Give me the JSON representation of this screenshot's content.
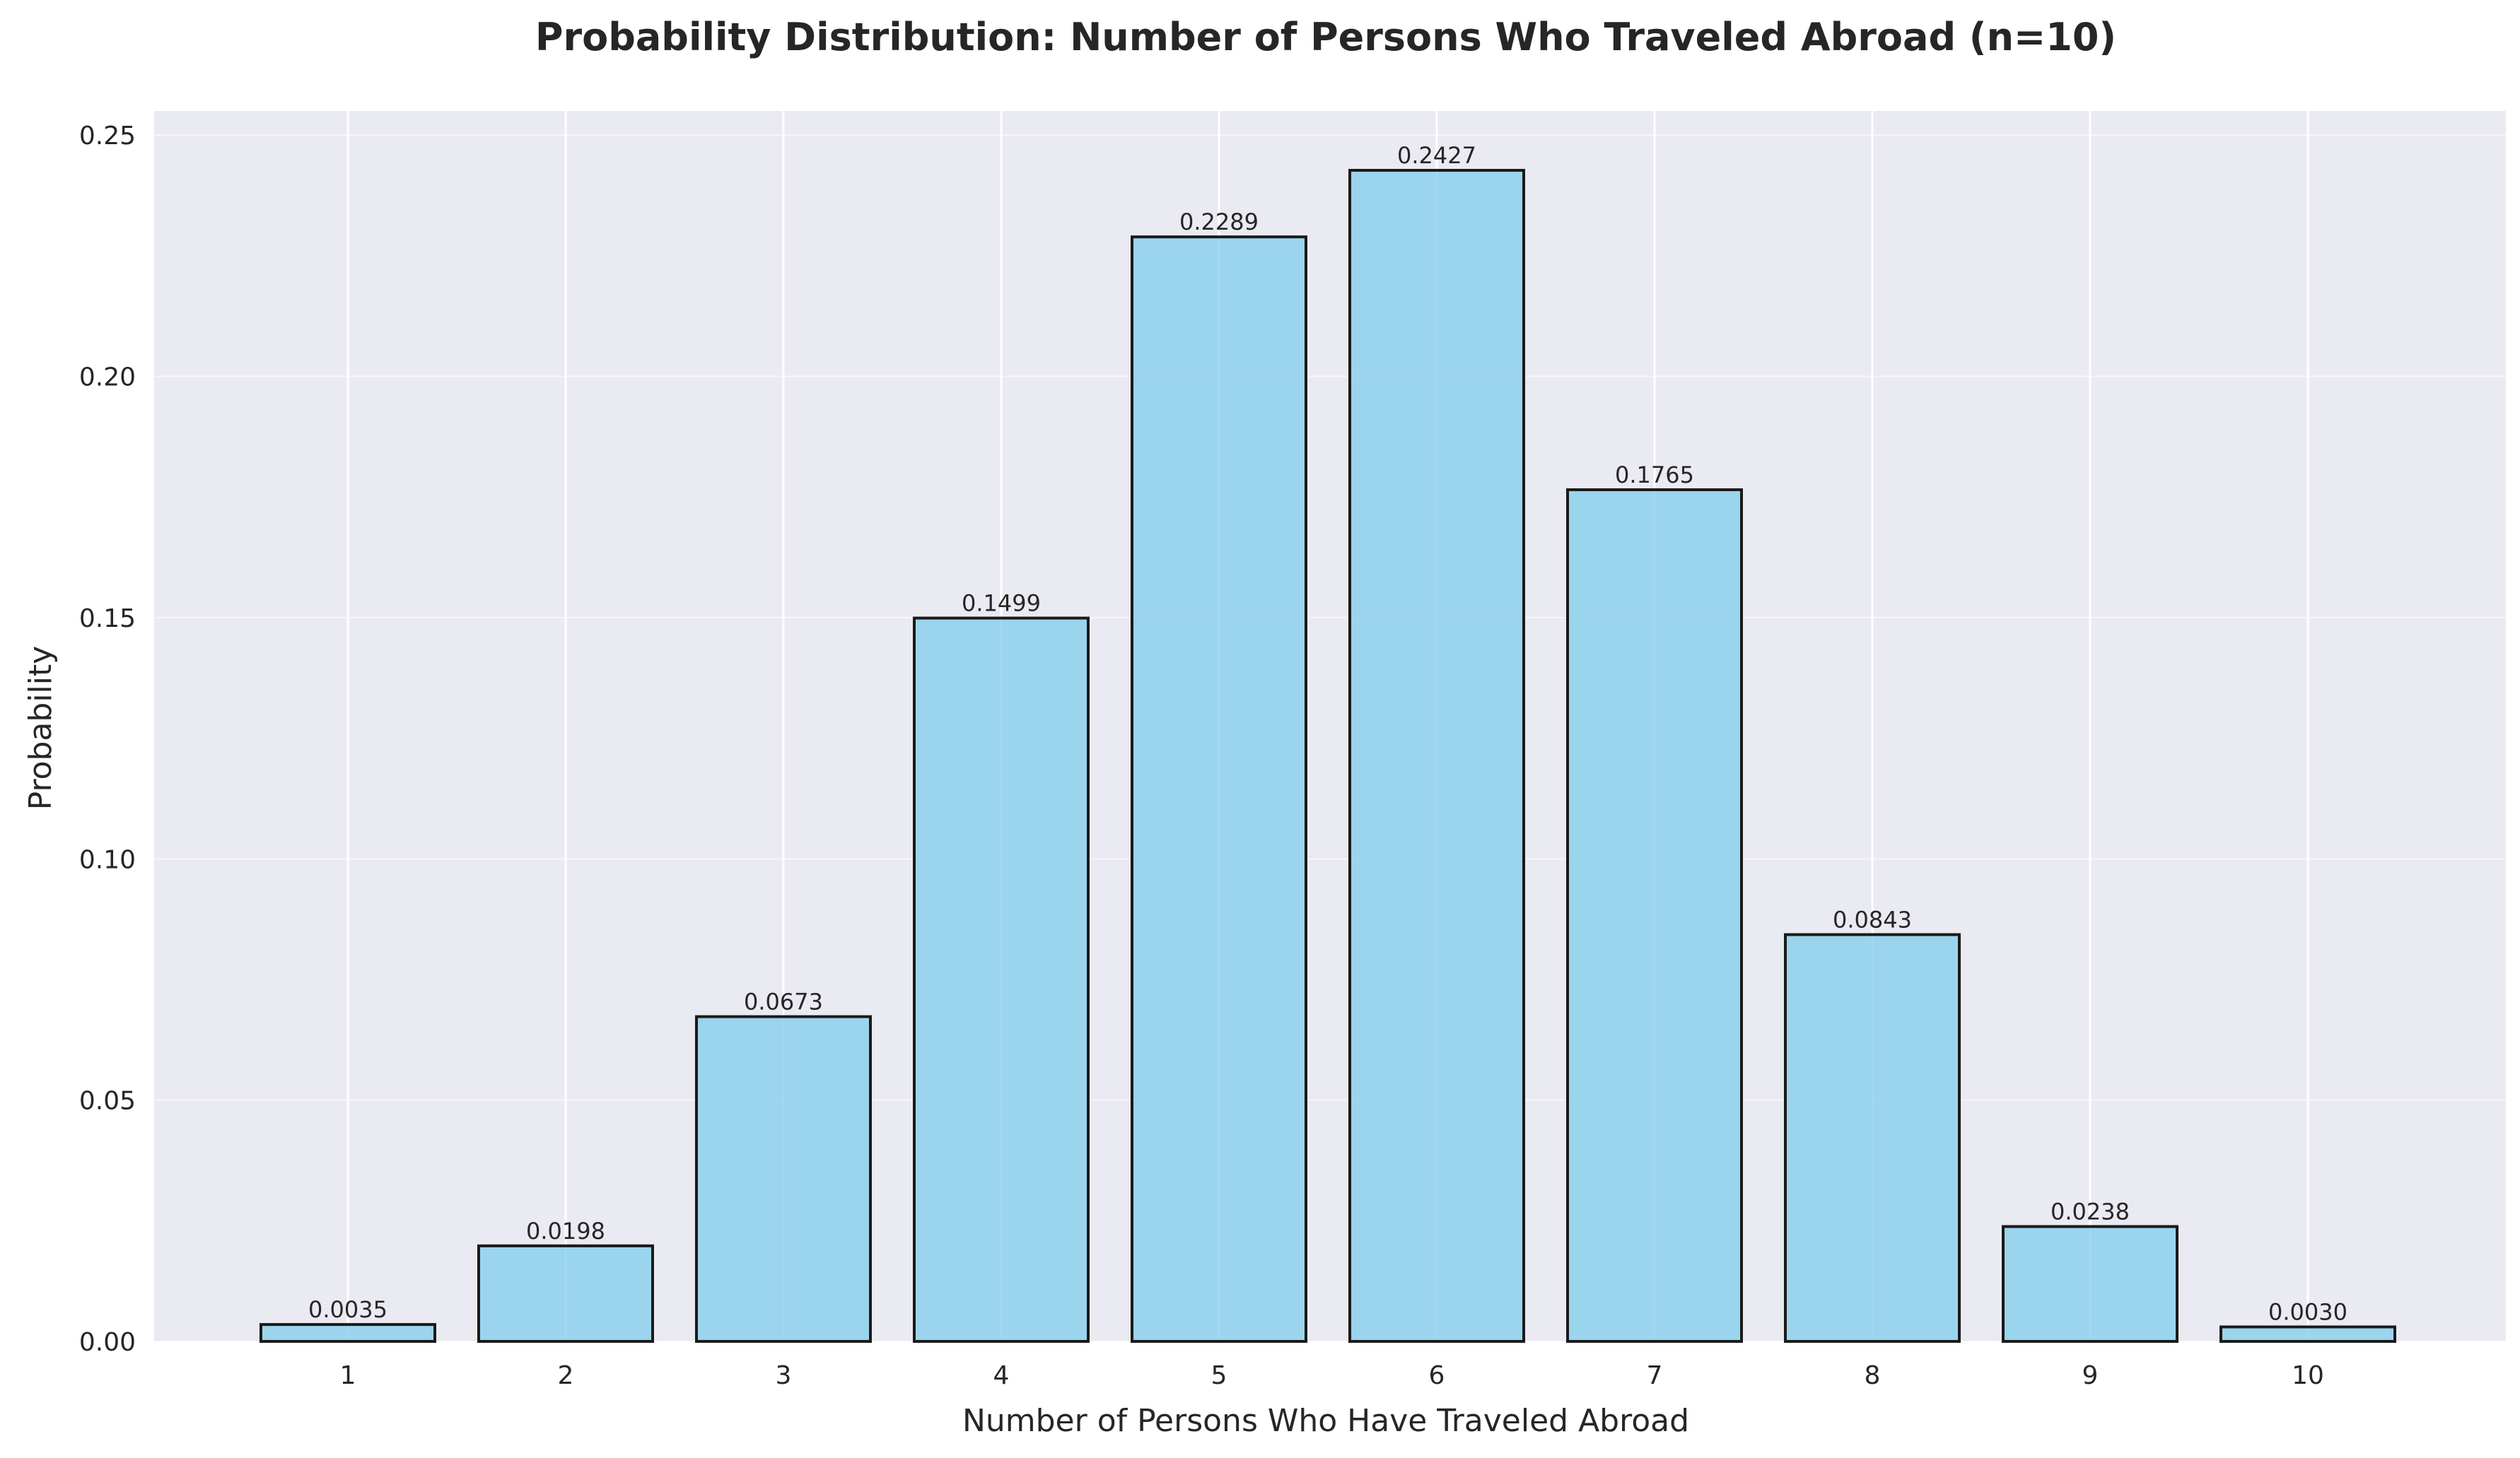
{
  "chart_data": {
    "type": "bar",
    "title": "Probability Distribution: Number of Persons Who Traveled Abroad (n=10)",
    "xlabel": "Number of Persons Who Have Traveled Abroad",
    "ylabel": "Probability",
    "categories": [
      "1",
      "2",
      "3",
      "4",
      "5",
      "6",
      "7",
      "8",
      "9",
      "10"
    ],
    "values": [
      0.0035,
      0.0198,
      0.0673,
      0.1499,
      0.2289,
      0.2427,
      0.1765,
      0.0843,
      0.0238,
      0.003
    ],
    "data_labels": [
      "0.0035",
      "0.0198",
      "0.0673",
      "0.1499",
      "0.2289",
      "0.2427",
      "0.1765",
      "0.0843",
      "0.0238",
      "0.0030"
    ],
    "ylim": [
      0,
      0.255
    ],
    "yticks": [
      0.0,
      0.05,
      0.1,
      0.15,
      0.2,
      0.25
    ],
    "ytick_labels": [
      "0.00",
      "0.05",
      "0.10",
      "0.15",
      "0.20",
      "0.25"
    ],
    "grid": true,
    "legend": false,
    "colors": {
      "bar_fill": "#87ceeb",
      "bar_edge": "#1a1a1a",
      "plot_background": "#eaeaf2",
      "grid": "#ffffff",
      "text": "#262626"
    }
  }
}
